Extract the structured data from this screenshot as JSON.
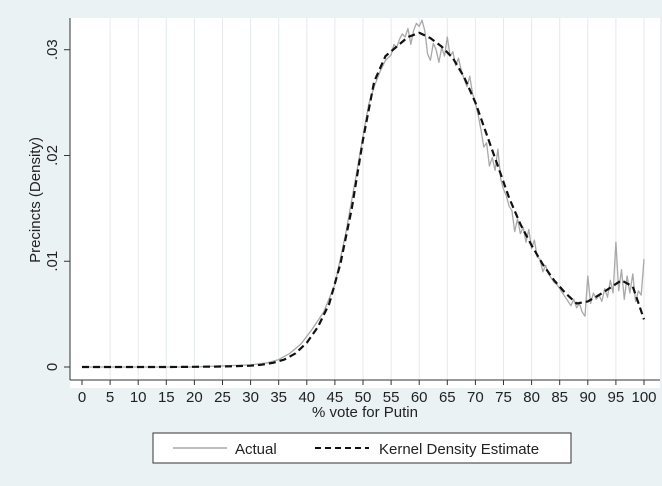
{
  "chart_data": {
    "type": "line",
    "xlabel": "% vote for Putin",
    "ylabel": "Precincts (Density)",
    "xlim": [
      0,
      100
    ],
    "ylim": [
      0,
      0.033
    ],
    "x_ticks": [
      0,
      5,
      10,
      15,
      20,
      25,
      30,
      35,
      40,
      45,
      50,
      55,
      60,
      65,
      70,
      75,
      80,
      85,
      90,
      95,
      100
    ],
    "x_tick_labels": [
      "0",
      "5",
      "10",
      "15",
      "20",
      "25",
      "30",
      "35",
      "40",
      "45",
      "50",
      "55",
      "60",
      "65",
      "70",
      "75",
      "80",
      "85",
      "90",
      "95",
      "100"
    ],
    "y_ticks": [
      0,
      0.01,
      0.02,
      0.03
    ],
    "y_tick_labels": [
      "0",
      ".01",
      ".02",
      ".03"
    ],
    "grid": "vertical",
    "legend_position": "bottom",
    "background_color": "#eaf2f3",
    "series": [
      {
        "name": "Actual",
        "style": "solid",
        "color": "#a8a8a8",
        "x": [
          0,
          5,
          10,
          15,
          20,
          25,
          30,
          33,
          35,
          37,
          39,
          41,
          43,
          45,
          47,
          49,
          51,
          52,
          53,
          54,
          55,
          55.5,
          56,
          56.5,
          57,
          57.5,
          58,
          58.5,
          59,
          59.5,
          60,
          60.5,
          61,
          61.5,
          62,
          62.5,
          63,
          63.5,
          64,
          64.5,
          65,
          65.5,
          66,
          66.5,
          67,
          67.5,
          68,
          68.5,
          69,
          69.5,
          70,
          70.5,
          71,
          71.5,
          72,
          72.5,
          73,
          73.5,
          74,
          74.5,
          75,
          75.5,
          76,
          76.5,
          77,
          77.5,
          78,
          78.5,
          79,
          79.5,
          80,
          80.5,
          81,
          81.5,
          82,
          82.5,
          83,
          83.5,
          84,
          84.5,
          85,
          85.5,
          86,
          86.5,
          87,
          87.5,
          88,
          88.5,
          89,
          89.5,
          90,
          90.5,
          91,
          91.5,
          92,
          92.5,
          93,
          93.5,
          94,
          94.5,
          95,
          95.5,
          96,
          96.5,
          97,
          97.5,
          98,
          98.5,
          99,
          99.5,
          100
        ],
        "y": [
          0,
          0,
          0,
          0,
          0,
          0.0001,
          0.0002,
          0.0004,
          0.0007,
          0.0013,
          0.0022,
          0.0036,
          0.0052,
          0.0078,
          0.0128,
          0.0188,
          0.0248,
          0.0265,
          0.0279,
          0.029,
          0.0295,
          0.0305,
          0.0302,
          0.031,
          0.0315,
          0.0312,
          0.032,
          0.0305,
          0.0318,
          0.0325,
          0.0322,
          0.0328,
          0.0318,
          0.0296,
          0.029,
          0.0306,
          0.03,
          0.0288,
          0.0302,
          0.0294,
          0.0312,
          0.0294,
          0.0298,
          0.0285,
          0.0292,
          0.028,
          0.0272,
          0.0265,
          0.0275,
          0.0258,
          0.025,
          0.0238,
          0.0224,
          0.0208,
          0.0212,
          0.019,
          0.0198,
          0.0186,
          0.0206,
          0.0178,
          0.0168,
          0.0162,
          0.0152,
          0.0148,
          0.0128,
          0.014,
          0.0126,
          0.0132,
          0.0118,
          0.013,
          0.0112,
          0.012,
          0.0104,
          0.0102,
          0.009,
          0.0096,
          0.0088,
          0.0084,
          0.008,
          0.0078,
          0.0074,
          0.007,
          0.0066,
          0.0062,
          0.0058,
          0.0064,
          0.0056,
          0.006,
          0.0052,
          0.0048,
          0.0086,
          0.006,
          0.007,
          0.0064,
          0.0068,
          0.0062,
          0.0074,
          0.0066,
          0.0082,
          0.007,
          0.0118,
          0.0072,
          0.0092,
          0.0064,
          0.0086,
          0.007,
          0.0088,
          0.0062,
          0.0072,
          0.0068,
          0.0102
        ]
      },
      {
        "name": "Kernel Density Estimate",
        "style": "dashed",
        "color": "#111111",
        "x": [
          0,
          5,
          10,
          15,
          20,
          25,
          30,
          32,
          34,
          36,
          38,
          40,
          42,
          44,
          46,
          48,
          50,
          52,
          54,
          56,
          58,
          60,
          62,
          64,
          66,
          68,
          70,
          72,
          74,
          76,
          78,
          80,
          82,
          84,
          86,
          88,
          90,
          92,
          94,
          96,
          98,
          100
        ],
        "y": [
          0,
          0,
          0,
          0,
          2e-05,
          5e-05,
          0.00012,
          0.00022,
          0.0004,
          0.0007,
          0.0013,
          0.0023,
          0.0038,
          0.006,
          0.0098,
          0.015,
          0.0215,
          0.027,
          0.0294,
          0.0303,
          0.0312,
          0.0316,
          0.0311,
          0.0303,
          0.0292,
          0.0274,
          0.025,
          0.022,
          0.019,
          0.016,
          0.0135,
          0.0115,
          0.0097,
          0.0082,
          0.007,
          0.006,
          0.0062,
          0.0068,
          0.0075,
          0.0082,
          0.0076,
          0.0045
        ]
      }
    ]
  }
}
